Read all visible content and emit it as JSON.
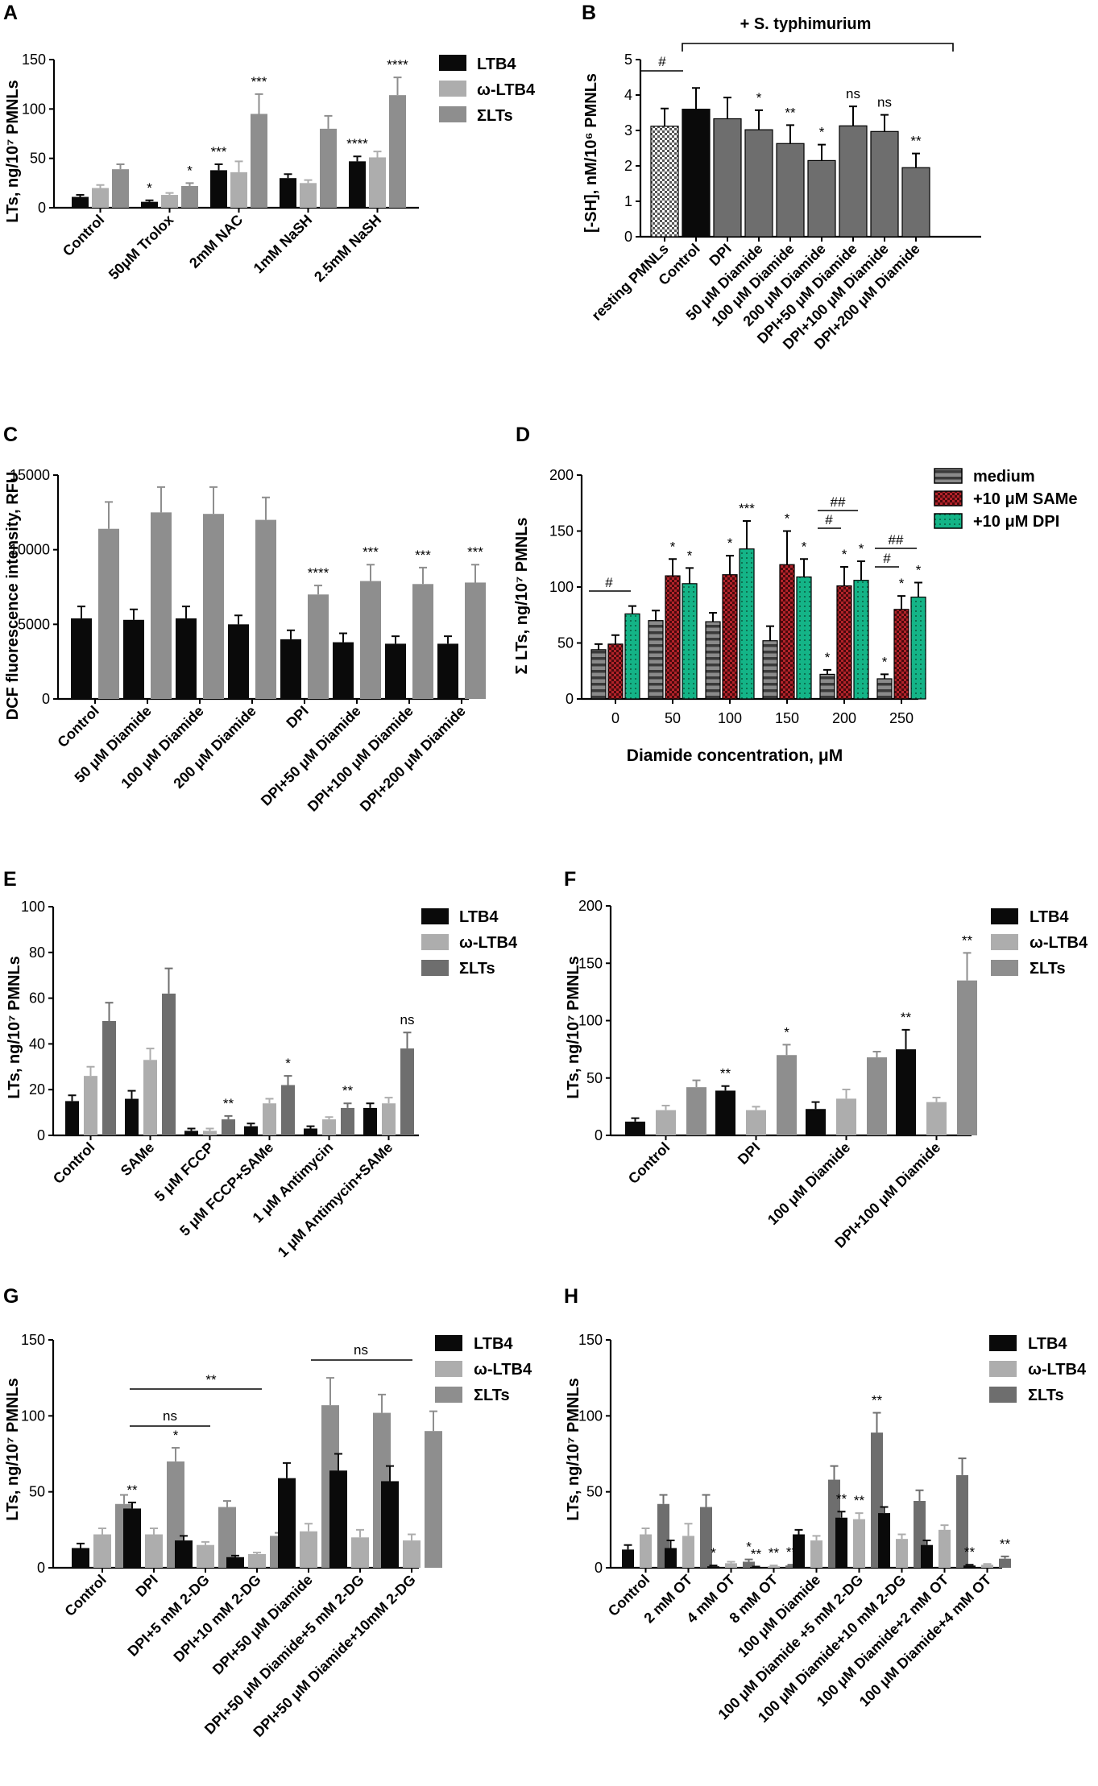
{
  "colors": {
    "black": "#0a0a0a",
    "light_gray": "#adadad",
    "mid_gray": "#8e8e8e",
    "dark_gray": "#6e6e6e",
    "red": "#b3232a",
    "green": "#14b487"
  },
  "chart_data": [
    {
      "id": "A",
      "panel_label": "A",
      "type": "bar",
      "ylabel": "LTs, ng/10⁷ PMNLs",
      "ylim": [
        0,
        150
      ],
      "yticks": [
        0,
        50,
        100,
        150
      ],
      "categories": [
        "Control",
        "50μM Trolox",
        "2mM NAC",
        "1mM NaSH",
        "2.5mM NaSH"
      ],
      "legend": [
        "LTB4",
        "ω-LTB4",
        "ΣLTs"
      ],
      "series": [
        {
          "name": "LTB4",
          "color": "#0a0a0a",
          "values": [
            11,
            6,
            38,
            30,
            47
          ],
          "errors": [
            2,
            1.5,
            6,
            4,
            5
          ],
          "stars": [
            "",
            "*",
            "***",
            "",
            "****"
          ]
        },
        {
          "name": "ω-LTB4",
          "color": "#adadad",
          "values": [
            20,
            13,
            36,
            25,
            51
          ],
          "errors": [
            3,
            2,
            11,
            3,
            6
          ],
          "stars": [
            "",
            "",
            "",
            "",
            ""
          ]
        },
        {
          "name": "ΣLTs",
          "color": "#8e8e8e",
          "values": [
            39,
            22,
            95,
            80,
            114
          ],
          "errors": [
            5,
            3,
            20,
            13,
            18
          ],
          "stars": [
            "",
            "*",
            "***",
            "",
            "****"
          ]
        }
      ]
    },
    {
      "id": "B",
      "panel_label": "B",
      "type": "bar",
      "ylabel": "[-SH], nM/10⁶ PMNLs",
      "ylim": [
        0,
        5
      ],
      "yticks": [
        0,
        1,
        2,
        3,
        4,
        5
      ],
      "categories": [
        "resting PMNLs",
        "Control",
        "DPI",
        "50 μM Diamide",
        "100 μM Diamide",
        "200 μM Diamide",
        "DPI+50 μM Diamide",
        "DPI+100 μM Diamide",
        "DPI+200 μM Diamide"
      ],
      "annotations": {
        "top_bracket": "+ S. typhimurium",
        "pair_mark": "#"
      },
      "series": [
        {
          "name": "[-SH]",
          "values": [
            3.12,
            3.6,
            3.33,
            3.02,
            2.63,
            2.15,
            3.13,
            2.97,
            1.95
          ],
          "errors": [
            0.5,
            0.6,
            0.6,
            0.55,
            0.52,
            0.45,
            0.55,
            0.47,
            0.4
          ],
          "stars": [
            "",
            "",
            "",
            "*",
            "**",
            "*",
            "ns",
            "ns",
            "**"
          ]
        }
      ]
    },
    {
      "id": "C",
      "panel_label": "C",
      "type": "bar",
      "ylabel": "DCF fluorescence intensity, RFU",
      "ylim": [
        0,
        15000
      ],
      "yticks": [
        0,
        5000,
        10000,
        15000
      ],
      "categories": [
        "Control",
        "50 μM Diamide",
        "100 μM Diamide",
        "200 μM Diamide",
        "DPI",
        "DPI+50 μM Diamide",
        "DPI+100 μM Diamide",
        "DPI+200 μM Diamide"
      ],
      "series": [
        {
          "name": "first bar",
          "color": "#0a0a0a",
          "values": [
            5400,
            5300,
            5400,
            5000,
            4000,
            3800,
            3700,
            3700
          ],
          "errors": [
            800,
            700,
            800,
            600,
            600,
            600,
            500,
            500
          ],
          "stars": [
            "",
            "",
            "",
            "",
            "",
            "",
            "",
            ""
          ]
        },
        {
          "name": "second bar",
          "color": "#8e8e8e",
          "values": [
            11400,
            12500,
            12400,
            12000,
            7000,
            7900,
            7700,
            7800
          ],
          "errors": [
            1800,
            1700,
            1800,
            1500,
            600,
            1100,
            1100,
            1200
          ],
          "stars": [
            "",
            "",
            "",
            "",
            "****",
            "***",
            "***",
            "***"
          ]
        }
      ]
    },
    {
      "id": "D",
      "panel_label": "D",
      "type": "bar",
      "ylabel": "Σ LTs, ng/10⁷ PMNLs",
      "xlabel": "Diamide concentration, μM",
      "ylim": [
        0,
        200
      ],
      "yticks": [
        0,
        50,
        100,
        150,
        200
      ],
      "categories": [
        "0",
        "50",
        "100",
        "150",
        "200",
        "250"
      ],
      "legend": [
        "medium",
        "+10 μM SAMe",
        "+10 μM DPI"
      ],
      "series": [
        {
          "name": "medium",
          "color": "#6e6e6e",
          "values": [
            44,
            70,
            69,
            52,
            22,
            18
          ],
          "errors": [
            5,
            9,
            8,
            13,
            4,
            4
          ],
          "stars": [
            "",
            "",
            "",
            "",
            "*",
            "*"
          ]
        },
        {
          "name": "+10 μM SAMe",
          "color": "#b3232a",
          "values": [
            49,
            110,
            111,
            120,
            101,
            80
          ],
          "errors": [
            8,
            15,
            17,
            30,
            17,
            12
          ],
          "stars": [
            "",
            "*",
            "*",
            "*",
            "*",
            "*"
          ]
        },
        {
          "name": "+10 μM DPI",
          "color": "#14b487",
          "values": [
            76,
            103,
            134,
            109,
            106,
            91
          ],
          "errors": [
            7,
            14,
            25,
            16,
            17,
            13
          ],
          "stars": [
            "",
            "*",
            "***",
            "*",
            "*",
            "*"
          ]
        }
      ],
      "annotations": {
        "single_mark": "#",
        "double_mark": "##"
      }
    },
    {
      "id": "E",
      "panel_label": "E",
      "type": "bar",
      "ylabel": "LTs, ng/10⁷ PMNLs",
      "ylim": [
        0,
        100
      ],
      "yticks": [
        0,
        20,
        40,
        60,
        80,
        100
      ],
      "categories": [
        "Control",
        "SAMe",
        "5 μM FCCP",
        "5 μM FCCP+SAMe",
        "1 μM Antimycin",
        "1 μM Antimycin+SAMe"
      ],
      "legend": [
        "LTB4",
        "ω-LTB4",
        "ΣLTs"
      ],
      "series": [
        {
          "name": "LTB4",
          "color": "#0a0a0a",
          "values": [
            15,
            16,
            2,
            4,
            3,
            12
          ],
          "errors": [
            2.5,
            3.5,
            1,
            1.2,
            1,
            2
          ],
          "stars": [
            "",
            "",
            "",
            "",
            "",
            ""
          ]
        },
        {
          "name": "ω-LTB4",
          "color": "#adadad",
          "values": [
            26,
            33,
            2,
            14,
            7,
            14
          ],
          "errors": [
            4,
            5,
            1,
            2,
            1,
            2.5
          ],
          "stars": [
            "",
            "",
            "",
            "",
            "",
            ""
          ]
        },
        {
          "name": "ΣLTs",
          "color": "#6e6e6e",
          "values": [
            50,
            62,
            7,
            22,
            12,
            38
          ],
          "errors": [
            8,
            11,
            1.5,
            4,
            2,
            7
          ],
          "stars": [
            "",
            "",
            "**",
            "*",
            "**",
            "ns"
          ]
        }
      ]
    },
    {
      "id": "F",
      "panel_label": "F",
      "type": "bar",
      "ylabel": "LTs, ng/10⁷ PMNLs",
      "ylim": [
        0,
        200
      ],
      "yticks": [
        0,
        50,
        100,
        150,
        200
      ],
      "categories": [
        "Control",
        "DPI",
        "100 μM Diamide",
        "DPI+100 μM Diamide"
      ],
      "legend": [
        "LTB4",
        "ω-LTB4",
        "ΣLTs"
      ],
      "series": [
        {
          "name": "LTB4",
          "color": "#0a0a0a",
          "values": [
            12,
            39,
            23,
            75
          ],
          "errors": [
            3,
            4,
            6,
            17
          ],
          "stars": [
            "",
            "**",
            "",
            "**"
          ]
        },
        {
          "name": "ω-LTB4",
          "color": "#adadad",
          "values": [
            22,
            22,
            32,
            29
          ],
          "errors": [
            4,
            3,
            8,
            4
          ],
          "stars": [
            "",
            "",
            "",
            ""
          ]
        },
        {
          "name": "ΣLTs",
          "color": "#8e8e8e",
          "values": [
            42,
            70,
            68,
            135
          ],
          "errors": [
            6,
            9,
            5,
            24
          ],
          "stars": [
            "",
            "*",
            "",
            "**"
          ]
        }
      ]
    },
    {
      "id": "G",
      "panel_label": "G",
      "type": "bar",
      "ylabel": "LTs, ng/10⁷ PMNLs",
      "ylim": [
        0,
        150
      ],
      "yticks": [
        0,
        50,
        100,
        150
      ],
      "categories": [
        "Control",
        "DPI",
        "DPI+5 mM 2-DG",
        "DPI+10 mM 2-DG",
        "DPI+50 μM Diamide",
        "DPI+50 μM Diamide+5 mM 2-DG",
        "DPI+50 μM Diamide+10mM 2-DG"
      ],
      "legend": [
        "LTB4",
        "ω-LTB4",
        "ΣLTs"
      ],
      "annotations": {
        "bracket_1": "ns",
        "bracket_2": "**",
        "bracket_3": "ns"
      },
      "series": [
        {
          "name": "LTB4",
          "color": "#0a0a0a",
          "values": [
            13,
            39,
            18,
            7,
            59,
            64,
            57
          ],
          "errors": [
            3,
            4,
            3,
            1,
            10,
            11,
            10
          ],
          "stars": [
            "",
            "**",
            "",
            "",
            "",
            "",
            ""
          ]
        },
        {
          "name": "ω-LTB4",
          "color": "#adadad",
          "values": [
            22,
            22,
            15,
            9,
            24,
            20,
            18
          ],
          "errors": [
            4,
            4,
            2,
            1,
            5,
            5,
            4
          ],
          "stars": [
            "",
            "",
            "",
            "",
            "",
            "",
            ""
          ]
        },
        {
          "name": "ΣLTs",
          "color": "#8e8e8e",
          "values": [
            42,
            70,
            40,
            21,
            107,
            102,
            90
          ],
          "errors": [
            6,
            9,
            4,
            2,
            18,
            12,
            13
          ],
          "stars": [
            "",
            "*",
            "",
            "",
            "",
            "",
            ""
          ]
        }
      ]
    },
    {
      "id": "H",
      "panel_label": "H",
      "type": "bar",
      "ylabel": "LTs, ng/10⁷ PMNLs",
      "ylim": [
        0,
        150
      ],
      "yticks": [
        0,
        50,
        100,
        150
      ],
      "categories": [
        "Control",
        "2 mM OT",
        "4 mM OT",
        "8 mM OT",
        "100 μM Diamide",
        "100 μM Diamide +5 mM 2-DG",
        "100 μM Diamide+10 mM 2-DG",
        "100 μM Diamide+2 mM OT",
        "100 μM Diamide+4 mM OT"
      ],
      "legend": [
        "LTB4",
        "ω-LTB4",
        "ΣLTs"
      ],
      "series": [
        {
          "name": "LTB4",
          "color": "#0a0a0a",
          "values": [
            12,
            13,
            1,
            0.5,
            22,
            33,
            36,
            15,
            1.5
          ],
          "errors": [
            3,
            5,
            0.5,
            0.3,
            3,
            4,
            4,
            3,
            0.5
          ],
          "stars": [
            "",
            "",
            "*",
            "**",
            "",
            "**",
            "",
            "",
            "**"
          ]
        },
        {
          "name": "ω-LTB4",
          "color": "#adadad",
          "values": [
            22,
            21,
            3,
            1,
            18,
            32,
            19,
            25,
            2
          ],
          "errors": [
            4,
            8,
            1,
            0.5,
            3,
            4,
            3,
            3,
            0.5
          ],
          "stars": [
            "",
            "",
            "",
            "**",
            "",
            "**",
            "",
            "",
            ""
          ]
        },
        {
          "name": "ΣLTs",
          "color": "#6e6e6e",
          "values": [
            42,
            40,
            4,
            1.5,
            58,
            89,
            44,
            61,
            6
          ],
          "errors": [
            6,
            8,
            1.5,
            0.5,
            9,
            13,
            7,
            11,
            1.5
          ],
          "stars": [
            "",
            "",
            "*",
            "**",
            "",
            "**",
            "",
            "",
            "**"
          ]
        }
      ]
    }
  ]
}
